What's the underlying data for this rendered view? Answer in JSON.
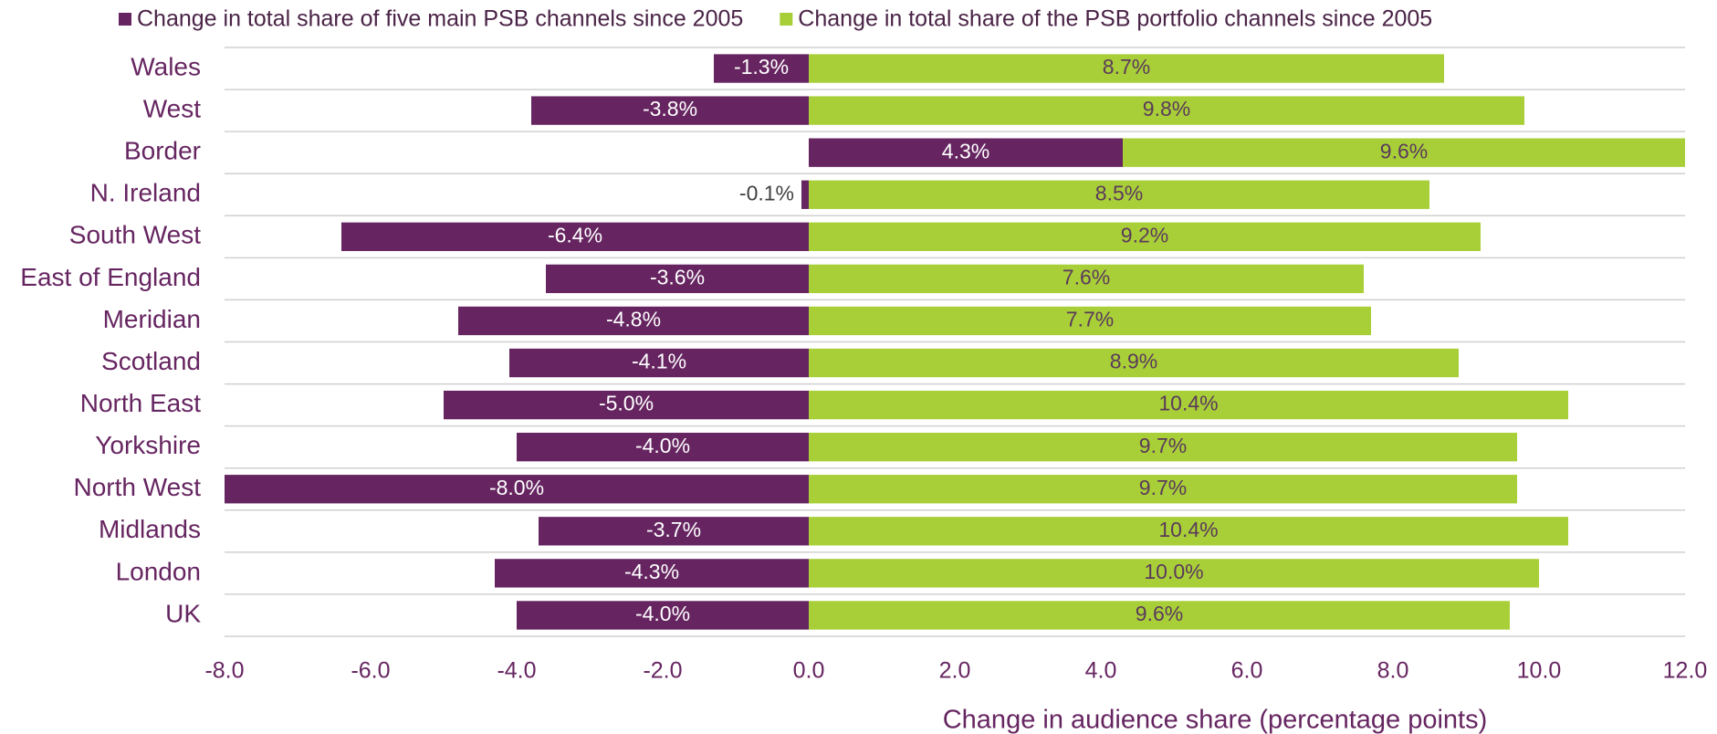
{
  "chart_data": {
    "type": "diverging_bar",
    "x_label": "Change in audience share (percentage points)",
    "categories": [
      "Wales",
      "West",
      "Border",
      "N. Ireland",
      "South West",
      "East of England",
      "Meridian",
      "Scotland",
      "North East",
      "Yorkshire",
      "North West",
      "Midlands",
      "London",
      "UK"
    ],
    "series": [
      {
        "name": "Change in total share of five main PSB channels since 2005",
        "color": "#662561",
        "values": [
          -1.3,
          -3.8,
          4.3,
          -0.1,
          -6.4,
          -3.6,
          -4.8,
          -4.1,
          -5.0,
          -4.0,
          -8.0,
          -3.7,
          -4.3,
          -4.0
        ],
        "value_labels": [
          "-1.3%",
          "-3.8%",
          "4.3%",
          "-0.1%",
          "-6.4%",
          "-3.6%",
          "-4.8%",
          "-4.1%",
          "-5.0%",
          "-4.0%",
          "-8.0%",
          "-3.7%",
          "-4.3%",
          "-4.0%"
        ]
      },
      {
        "name": "Change in total share of the PSB portfolio channels since 2005",
        "color": "#a8cf38",
        "values": [
          8.7,
          9.8,
          9.6,
          8.5,
          9.2,
          7.6,
          7.7,
          8.9,
          10.4,
          9.7,
          9.7,
          10.4,
          10.0,
          9.6
        ],
        "value_labels": [
          "8.7%",
          "9.8%",
          "9.6%",
          "8.5%",
          "9.2%",
          "7.6%",
          "7.7%",
          "8.9%",
          "10.4%",
          "9.7%",
          "9.7%",
          "10.4%",
          "10.0%",
          "9.6%"
        ]
      }
    ],
    "xlim": [
      -8,
      12
    ],
    "xticks": [
      {
        "value": -8,
        "label": "-8.0"
      },
      {
        "value": -6,
        "label": "-6.0"
      },
      {
        "value": -4,
        "label": "-4.0"
      },
      {
        "value": -2,
        "label": "-2.0"
      },
      {
        "value": 0,
        "label": "0.0"
      },
      {
        "value": 2,
        "label": "2.0"
      },
      {
        "value": 4,
        "label": "4.0"
      },
      {
        "value": 6,
        "label": "6.0"
      },
      {
        "value": 8,
        "label": "8.0"
      },
      {
        "value": 10,
        "label": "10.0"
      },
      {
        "value": 12,
        "label": "12.0"
      }
    ],
    "legend": "top"
  }
}
